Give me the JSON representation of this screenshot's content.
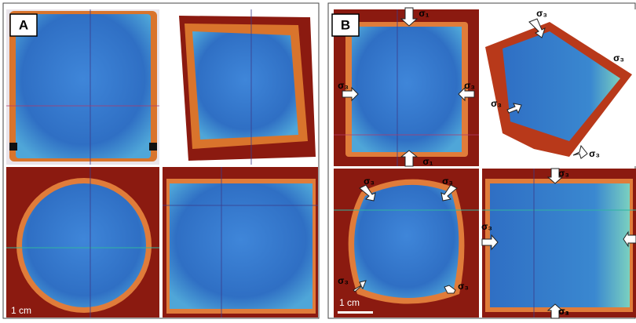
{
  "panels": [
    {
      "label": "A",
      "scale_bar": "1 cm"
    },
    {
      "label": "B",
      "scale_bar": "1 cm",
      "stress_labels": [
        "σ₁",
        "σ₁",
        "σ₃",
        "σ₃",
        "σ₃",
        "σ₃",
        "σ₃",
        "σ₃",
        "σ₃",
        "σ₃",
        "σ₃",
        "σ₃",
        "σ₃",
        "σ₃",
        "σ₁",
        "σ₃"
      ]
    }
  ]
}
